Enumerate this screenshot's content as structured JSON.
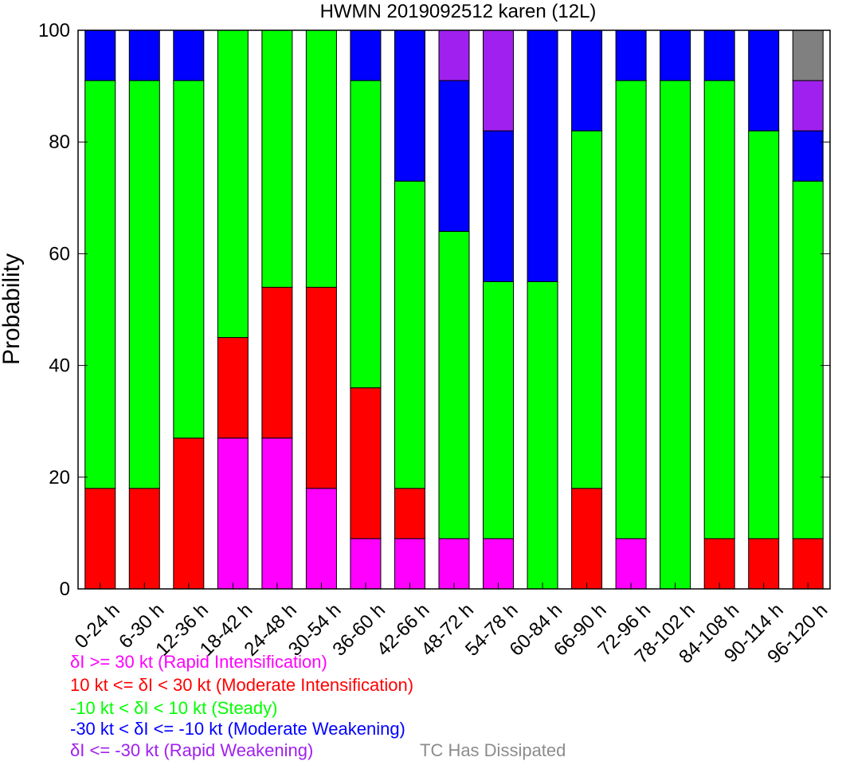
{
  "chart_data": {
    "type": "bar",
    "stacked": true,
    "title": "HWMN 2019092512 karen (12L)",
    "ylabel": "Probability",
    "xlabel": "",
    "ylim": [
      0,
      100
    ],
    "yticks": [
      0,
      20,
      40,
      60,
      80,
      100
    ],
    "grid": false,
    "legend_position": "bottom-left",
    "categories": [
      "0-24 h",
      "6-30 h",
      "12-36 h",
      "18-42 h",
      "24-48 h",
      "30-54 h",
      "36-60 h",
      "42-66 h",
      "48-72 h",
      "54-78 h",
      "60-84 h",
      "66-90 h",
      "72-96 h",
      "78-102 h",
      "84-108 h",
      "90-114 h",
      "96-120 h"
    ],
    "series": [
      {
        "name": "δI >= 30 kt (Rapid Intensification)",
        "color": "#ff00ff",
        "values": [
          0,
          0,
          0,
          27,
          27,
          18,
          9,
          9,
          9,
          9,
          0,
          0,
          9,
          0,
          0,
          0,
          0
        ]
      },
      {
        "name": "10 kt <= δI < 30 kt (Moderate Intensification)",
        "color": "#ff0000",
        "values": [
          18,
          18,
          27,
          18,
          27,
          36,
          27,
          9,
          0,
          0,
          0,
          18,
          0,
          0,
          9,
          9,
          9
        ]
      },
      {
        "name": "-10 kt < δI < 10 kt (Steady)",
        "color": "#00ff00",
        "values": [
          73,
          73,
          64,
          55,
          46,
          46,
          55,
          55,
          55,
          46,
          55,
          64,
          82,
          91,
          82,
          73,
          64
        ]
      },
      {
        "name": "-30 kt < δI <= -10 kt (Moderate Weakening)",
        "color": "#0000ff",
        "values": [
          9,
          9,
          9,
          0,
          0,
          0,
          9,
          27,
          27,
          27,
          45,
          18,
          9,
          9,
          9,
          18,
          9
        ]
      },
      {
        "name": "δI <= -30 kt (Rapid Weakening)",
        "color": "#a020f0",
        "values": [
          0,
          0,
          0,
          0,
          0,
          0,
          0,
          0,
          9,
          18,
          0,
          0,
          0,
          0,
          0,
          0,
          9
        ]
      },
      {
        "name": "TC Has Dissipated",
        "color": "#808080",
        "values": [
          0,
          0,
          0,
          0,
          0,
          0,
          0,
          0,
          0,
          0,
          0,
          0,
          0,
          0,
          0,
          0,
          9
        ]
      }
    ]
  }
}
